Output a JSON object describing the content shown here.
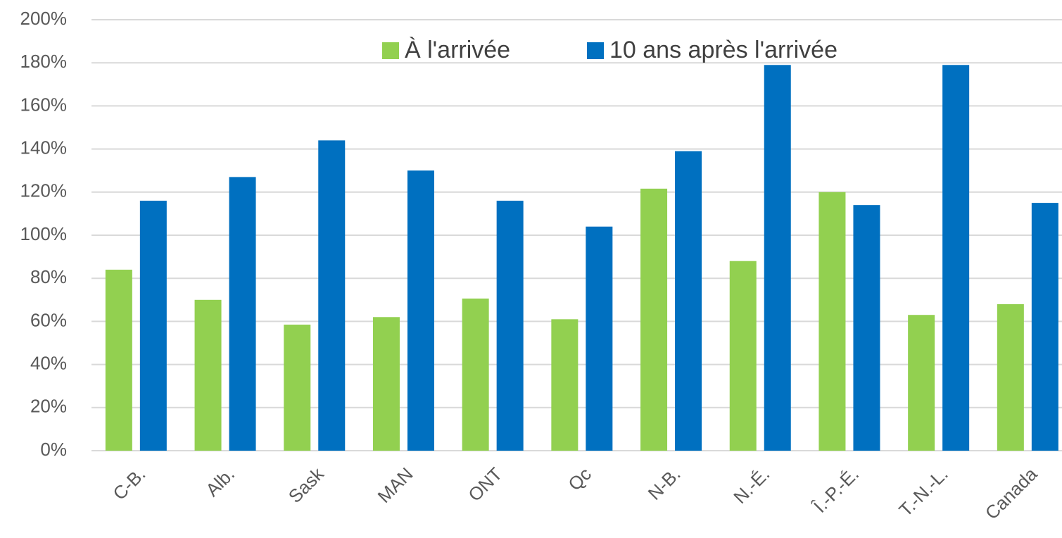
{
  "chart_data": {
    "type": "bar",
    "categories": [
      "C-B.",
      "Alb.",
      "Sask",
      "MAN",
      "ONT",
      "Qc",
      "N-B.",
      "N.-É.",
      "Î.-P.-É.",
      "T.-N.-L.",
      "Canada"
    ],
    "series": [
      {
        "name": "À l'arrivée",
        "color": "#92d050",
        "values": [
          84,
          70,
          58.5,
          62,
          70.6,
          61,
          121.6,
          88,
          120,
          63,
          68
        ]
      },
      {
        "name": "10 ans après l'arrivée",
        "color": "#0070c0",
        "values": [
          116,
          127,
          144,
          130,
          116,
          104,
          139,
          179,
          114,
          179,
          115
        ]
      }
    ],
    "ylim": [
      0,
      200
    ],
    "yticks": [
      {
        "value": 0,
        "label": "0%"
      },
      {
        "value": 20,
        "label": "20%"
      },
      {
        "value": 40,
        "label": "40%"
      },
      {
        "value": 60,
        "label": "60%"
      },
      {
        "value": 80,
        "label": "80%"
      },
      {
        "value": 100,
        "label": "100%"
      },
      {
        "value": 120,
        "label": "120%"
      },
      {
        "value": 140,
        "label": "140%"
      },
      {
        "value": 160,
        "label": "160%"
      },
      {
        "value": 180,
        "label": "180%"
      },
      {
        "value": 200,
        "label": "200%"
      }
    ],
    "grid": true,
    "legend": "top"
  }
}
